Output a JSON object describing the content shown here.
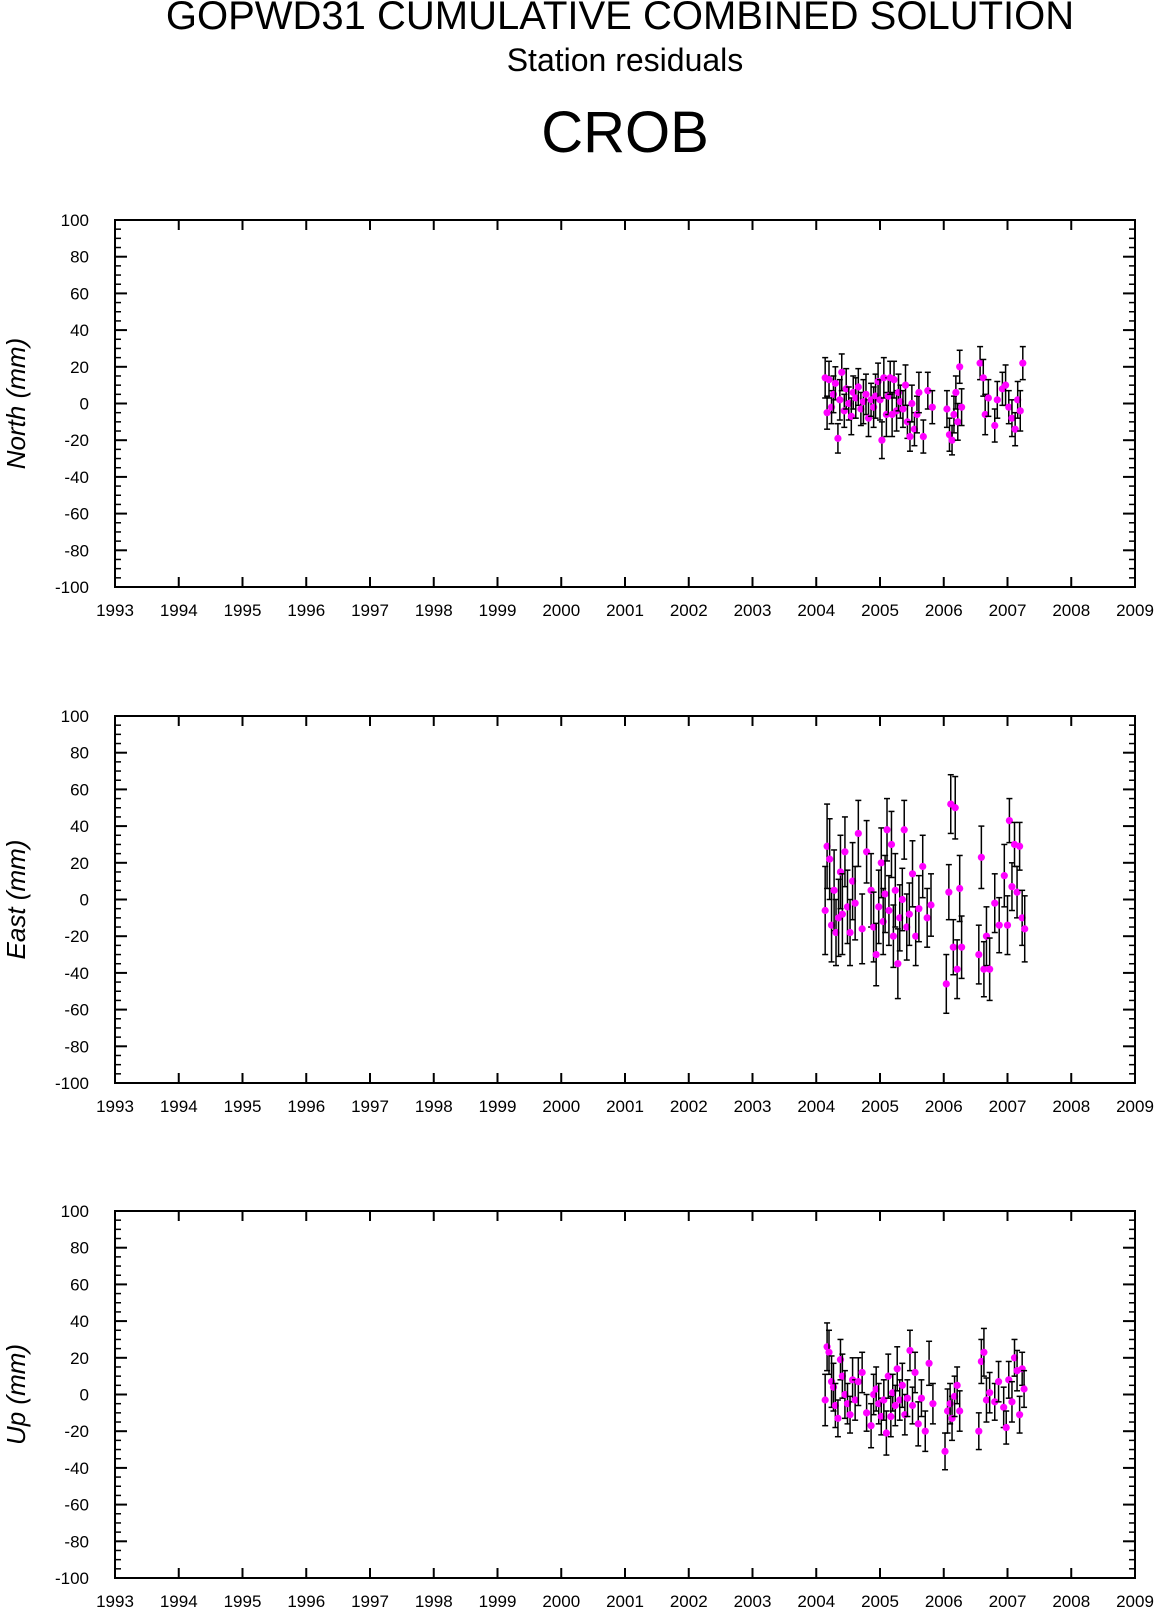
{
  "header": {
    "title": "GOPWD31 CUMULATIVE COMBINED SOLUTION",
    "subtitle": "Station residuals",
    "station": "CROB"
  },
  "colors": {
    "point": "#ff00ff",
    "errorbar": "#000000",
    "axis": "#000000",
    "background": "#ffffff"
  },
  "chart_data": [
    {
      "type": "scatter",
      "ylabel": "North (mm)",
      "xlim": [
        1993,
        2009
      ],
      "ylim": [
        -100,
        100
      ],
      "x_ticks": [
        "1993",
        "1994",
        "1995",
        "1996",
        "1997",
        "1998",
        "1999",
        "2000",
        "2001",
        "2002",
        "2003",
        "2004",
        "2005",
        "2006",
        "2007",
        "2008",
        "2009"
      ],
      "y_ticks": [
        "100",
        "80",
        "60",
        "40",
        "20",
        "0",
        "-20",
        "-40",
        "-60",
        "-80",
        "-100"
      ],
      "error_bars": true,
      "series": [
        {
          "points": [
            [
              2004.14,
              14,
              11
            ],
            [
              2004.17,
              -5,
              9
            ],
            [
              2004.2,
              13,
              10
            ],
            [
              2004.24,
              -2,
              9
            ],
            [
              2004.27,
              5,
              10
            ],
            [
              2004.3,
              11,
              9
            ],
            [
              2004.34,
              -19,
              8
            ],
            [
              2004.37,
              2,
              11
            ],
            [
              2004.4,
              17,
              10
            ],
            [
              2004.44,
              -4,
              9
            ],
            [
              2004.47,
              8,
              11
            ],
            [
              2004.51,
              0,
              9
            ],
            [
              2004.55,
              -7,
              10
            ],
            [
              2004.58,
              6,
              9
            ],
            [
              2004.62,
              3,
              11
            ],
            [
              2004.66,
              9,
              10
            ],
            [
              2004.7,
              -3,
              9
            ],
            [
              2004.74,
              1,
              12
            ],
            [
              2004.78,
              5,
              11
            ],
            [
              2004.82,
              -8,
              10
            ],
            [
              2004.86,
              2,
              9
            ],
            [
              2004.9,
              -2,
              11
            ],
            [
              2004.93,
              4,
              12
            ],
            [
              2004.97,
              12,
              10
            ],
            [
              2005.0,
              2,
              11
            ],
            [
              2005.03,
              -20,
              10
            ],
            [
              2005.06,
              14,
              11
            ],
            [
              2005.1,
              -6,
              12
            ],
            [
              2005.13,
              4,
              10
            ],
            [
              2005.16,
              14,
              9
            ],
            [
              2005.19,
              -6,
              12
            ],
            [
              2005.22,
              13,
              10
            ],
            [
              2005.26,
              -4,
              11
            ],
            [
              2005.29,
              6,
              10
            ],
            [
              2005.32,
              1,
              9
            ],
            [
              2005.36,
              -3,
              10
            ],
            [
              2005.4,
              10,
              11
            ],
            [
              2005.43,
              -10,
              9
            ],
            [
              2005.47,
              -18,
              8
            ],
            [
              2005.5,
              0,
              10
            ],
            [
              2005.54,
              -14,
              9
            ],
            [
              2005.58,
              -6,
              10
            ],
            [
              2005.61,
              6,
              11
            ],
            [
              2005.68,
              -18,
              9
            ],
            [
              2005.75,
              7,
              10
            ],
            [
              2005.82,
              -2,
              9
            ],
            [
              2006.05,
              -3,
              10
            ],
            [
              2006.09,
              -17,
              9
            ],
            [
              2006.13,
              -20,
              8
            ],
            [
              2006.16,
              -6,
              10
            ],
            [
              2006.19,
              6,
              9
            ],
            [
              2006.22,
              -10,
              10
            ],
            [
              2006.25,
              20,
              9
            ],
            [
              2006.28,
              -2,
              10
            ],
            [
              2006.57,
              22,
              9
            ],
            [
              2006.62,
              14,
              10
            ],
            [
              2006.65,
              -6,
              11
            ],
            [
              2006.7,
              3,
              10
            ],
            [
              2006.8,
              -12,
              9
            ],
            [
              2006.84,
              2,
              10
            ],
            [
              2006.92,
              8,
              9
            ],
            [
              2006.97,
              10,
              11
            ],
            [
              2007.02,
              -2,
              9
            ],
            [
              2007.07,
              -8,
              10
            ],
            [
              2007.12,
              -14,
              9
            ],
            [
              2007.16,
              2,
              10
            ],
            [
              2007.2,
              -4,
              11
            ],
            [
              2007.24,
              22,
              9
            ]
          ]
        }
      ]
    },
    {
      "type": "scatter",
      "ylabel": "East (mm)",
      "xlim": [
        1993,
        2009
      ],
      "ylim": [
        -100,
        100
      ],
      "x_ticks": [
        "1993",
        "1994",
        "1995",
        "1996",
        "1997",
        "1998",
        "1999",
        "2000",
        "2001",
        "2002",
        "2003",
        "2004",
        "2005",
        "2006",
        "2007",
        "2008",
        "2009"
      ],
      "y_ticks": [
        "100",
        "80",
        "60",
        "40",
        "20",
        "0",
        "-20",
        "-40",
        "-60",
        "-80",
        "-100"
      ],
      "error_bars": true,
      "series": [
        {
          "points": [
            [
              2004.14,
              -6,
              24
            ],
            [
              2004.17,
              29,
              23
            ],
            [
              2004.21,
              22,
              22
            ],
            [
              2004.24,
              -14,
              20
            ],
            [
              2004.28,
              5,
              22
            ],
            [
              2004.31,
              -18,
              18
            ],
            [
              2004.35,
              -10,
              21
            ],
            [
              2004.38,
              15,
              20
            ],
            [
              2004.41,
              -8,
              22
            ],
            [
              2004.45,
              26,
              19
            ],
            [
              2004.49,
              -4,
              20
            ],
            [
              2004.53,
              -18,
              18
            ],
            [
              2004.57,
              10,
              21
            ],
            [
              2004.61,
              -2,
              20
            ],
            [
              2004.66,
              36,
              18
            ],
            [
              2004.72,
              -16,
              19
            ],
            [
              2004.79,
              26,
              17
            ],
            [
              2004.86,
              5,
              20
            ],
            [
              2004.9,
              -15,
              19
            ],
            [
              2004.94,
              -30,
              17
            ],
            [
              2004.98,
              -4,
              20
            ],
            [
              2005.02,
              20,
              19
            ],
            [
              2005.05,
              -12,
              18
            ],
            [
              2005.08,
              3,
              21
            ],
            [
              2005.11,
              38,
              17
            ],
            [
              2005.14,
              -6,
              19
            ],
            [
              2005.18,
              30,
              18
            ],
            [
              2005.21,
              -20,
              17
            ],
            [
              2005.24,
              5,
              20
            ],
            [
              2005.28,
              -35,
              19
            ],
            [
              2005.31,
              -10,
              18
            ],
            [
              2005.35,
              0,
              17
            ],
            [
              2005.38,
              38,
              16
            ],
            [
              2005.42,
              -15,
              18
            ],
            [
              2005.46,
              -8,
              17
            ],
            [
              2005.51,
              14,
              18
            ],
            [
              2005.56,
              -20,
              16
            ],
            [
              2005.61,
              -5,
              18
            ],
            [
              2005.67,
              18,
              17
            ],
            [
              2005.74,
              -10,
              16
            ],
            [
              2005.8,
              -3,
              17
            ],
            [
              2006.04,
              -46,
              16
            ],
            [
              2006.08,
              4,
              15
            ],
            [
              2006.11,
              52,
              16
            ],
            [
              2006.15,
              -26,
              15
            ],
            [
              2006.18,
              50,
              17
            ],
            [
              2006.21,
              -38,
              16
            ],
            [
              2006.25,
              6,
              18
            ],
            [
              2006.28,
              -26,
              17
            ],
            [
              2006.55,
              -30,
              16
            ],
            [
              2006.59,
              23,
              17
            ],
            [
              2006.63,
              -38,
              15
            ],
            [
              2006.67,
              -20,
              16
            ],
            [
              2006.72,
              -38,
              17
            ],
            [
              2006.8,
              -2,
              16
            ],
            [
              2006.87,
              -14,
              15
            ],
            [
              2006.95,
              13,
              17
            ],
            [
              2007.0,
              -14,
              16
            ],
            [
              2007.03,
              43,
              12
            ],
            [
              2007.07,
              7,
              13
            ],
            [
              2007.11,
              30,
              12
            ],
            [
              2007.15,
              4,
              14
            ],
            [
              2007.19,
              29,
              13
            ],
            [
              2007.23,
              -10,
              15
            ],
            [
              2007.27,
              -16,
              18
            ]
          ]
        }
      ]
    },
    {
      "type": "scatter",
      "ylabel": "Up (mm)",
      "xlim": [
        1993,
        2009
      ],
      "ylim": [
        -100,
        100
      ],
      "x_ticks": [
        "1993",
        "1994",
        "1995",
        "1996",
        "1997",
        "1998",
        "1999",
        "2000",
        "2001",
        "2002",
        "2003",
        "2004",
        "2005",
        "2006",
        "2007",
        "2008",
        "2009"
      ],
      "y_ticks": [
        "100",
        "80",
        "60",
        "40",
        "20",
        "0",
        "-20",
        "-40",
        "-60",
        "-80",
        "-100"
      ],
      "error_bars": true,
      "series": [
        {
          "points": [
            [
              2004.14,
              -3,
              14
            ],
            [
              2004.17,
              26,
              13
            ],
            [
              2004.2,
              23,
              12
            ],
            [
              2004.24,
              7,
              14
            ],
            [
              2004.27,
              4,
              13
            ],
            [
              2004.3,
              -6,
              12
            ],
            [
              2004.34,
              -13,
              10
            ],
            [
              2004.38,
              19,
              11
            ],
            [
              2004.41,
              10,
              12
            ],
            [
              2004.45,
              0,
              13
            ],
            [
              2004.49,
              -5,
              11
            ],
            [
              2004.53,
              -11,
              10
            ],
            [
              2004.57,
              8,
              12
            ],
            [
              2004.61,
              -3,
              11
            ],
            [
              2004.66,
              7,
              13
            ],
            [
              2004.72,
              12,
              11
            ],
            [
              2004.79,
              -10,
              10
            ],
            [
              2004.86,
              -17,
              12
            ],
            [
              2004.9,
              0,
              11
            ],
            [
              2004.94,
              3,
              12
            ],
            [
              2004.98,
              -5,
              11
            ],
            [
              2005.02,
              -12,
              10
            ],
            [
              2005.06,
              -3,
              11
            ],
            [
              2005.1,
              -21,
              12
            ],
            [
              2005.13,
              10,
              12
            ],
            [
              2005.17,
              -12,
              11
            ],
            [
              2005.2,
              1,
              10
            ],
            [
              2005.24,
              -6,
              11
            ],
            [
              2005.27,
              14,
              12
            ],
            [
              2005.31,
              -3,
              11
            ],
            [
              2005.35,
              5,
              12
            ],
            [
              2005.39,
              -11,
              11
            ],
            [
              2005.43,
              -2,
              10
            ],
            [
              2005.47,
              24,
              11
            ],
            [
              2005.51,
              -6,
              10
            ],
            [
              2005.55,
              12,
              11
            ],
            [
              2005.6,
              -16,
              12
            ],
            [
              2005.65,
              -2,
              10
            ],
            [
              2005.71,
              -20,
              11
            ],
            [
              2005.77,
              17,
              12
            ],
            [
              2005.83,
              -5,
              11
            ],
            [
              2006.02,
              -31,
              10
            ],
            [
              2006.06,
              -9,
              12
            ],
            [
              2006.1,
              -5,
              11
            ],
            [
              2006.13,
              -13,
              12
            ],
            [
              2006.17,
              -1,
              11
            ],
            [
              2006.21,
              5,
              10
            ],
            [
              2006.25,
              -9,
              11
            ],
            [
              2006.55,
              -20,
              10
            ],
            [
              2006.59,
              18,
              12
            ],
            [
              2006.63,
              23,
              13
            ],
            [
              2006.67,
              -3,
              12
            ],
            [
              2006.72,
              1,
              11
            ],
            [
              2006.8,
              -4,
              10
            ],
            [
              2006.86,
              7,
              11
            ],
            [
              2006.94,
              -7,
              11
            ],
            [
              2006.98,
              -18,
              9
            ],
            [
              2007.02,
              8,
              10
            ],
            [
              2007.07,
              -4,
              11
            ],
            [
              2007.11,
              20,
              10
            ],
            [
              2007.15,
              13,
              11
            ],
            [
              2007.19,
              -11,
              10
            ],
            [
              2007.23,
              14,
              9
            ],
            [
              2007.26,
              3,
              10
            ]
          ]
        }
      ]
    }
  ]
}
